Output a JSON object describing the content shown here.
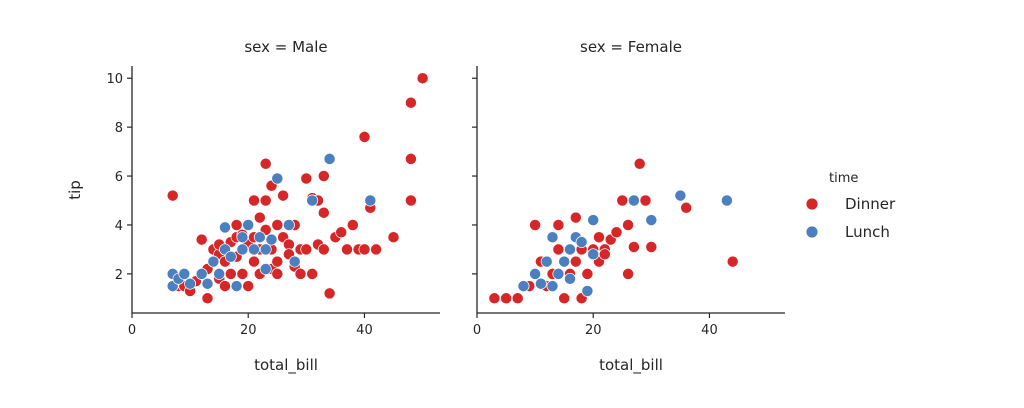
{
  "chart_data": [
    {
      "type": "scatter",
      "title": "sex = Male",
      "xlabel": "total_bill",
      "ylabel": "tip",
      "xlim": [
        0,
        53
      ],
      "ylim": [
        0.4,
        10.5
      ],
      "xticks": [
        0,
        20,
        40
      ],
      "yticks": [
        2,
        4,
        6,
        8,
        10
      ],
      "grid": false,
      "series": [
        {
          "name": "Dinner",
          "color": "#d62728",
          "points": [
            [
              7,
              5.2
            ],
            [
              8,
              1.5
            ],
            [
              9,
              1.5
            ],
            [
              10,
              1.3
            ],
            [
              11,
              1.7
            ],
            [
              12,
              3.4
            ],
            [
              12,
              2.0
            ],
            [
              13,
              1.0
            ],
            [
              13,
              2.2
            ],
            [
              14,
              2.5
            ],
            [
              14,
              3.0
            ],
            [
              15,
              1.8
            ],
            [
              15,
              2.8
            ],
            [
              15,
              3.2
            ],
            [
              16,
              3.0
            ],
            [
              16,
              2.5
            ],
            [
              16,
              1.5
            ],
            [
              17,
              3.3
            ],
            [
              17,
              2.0
            ],
            [
              18,
              3.5
            ],
            [
              18,
              4.0
            ],
            [
              18,
              2.7
            ],
            [
              19,
              3.0
            ],
            [
              19,
              3.6
            ],
            [
              19,
              2.0
            ],
            [
              20,
              3.2
            ],
            [
              20,
              4.0
            ],
            [
              20,
              1.5
            ],
            [
              21,
              3.5
            ],
            [
              21,
              2.5
            ],
            [
              21,
              5.0
            ],
            [
              22,
              3.0
            ],
            [
              22,
              4.3
            ],
            [
              22,
              2.0
            ],
            [
              23,
              3.8
            ],
            [
              23,
              5.0
            ],
            [
              23,
              6.5
            ],
            [
              24,
              5.6
            ],
            [
              24,
              3.0
            ],
            [
              24,
              2.2
            ],
            [
              25,
              2.5
            ],
            [
              25,
              4.0
            ],
            [
              25,
              2.0
            ],
            [
              26,
              3.5
            ],
            [
              26,
              5.2
            ],
            [
              27,
              3.2
            ],
            [
              27,
              2.8
            ],
            [
              28,
              4.0
            ],
            [
              28,
              2.3
            ],
            [
              29,
              3.0
            ],
            [
              29,
              2.0
            ],
            [
              30,
              5.9
            ],
            [
              30,
              3.0
            ],
            [
              31,
              5.1
            ],
            [
              31,
              2.0
            ],
            [
              32,
              5.0
            ],
            [
              32,
              3.2
            ],
            [
              33,
              6.0
            ],
            [
              33,
              4.5
            ],
            [
              33,
              3.0
            ],
            [
              34,
              1.2
            ],
            [
              35,
              3.5
            ],
            [
              36,
              3.7
            ],
            [
              37,
              3.0
            ],
            [
              38,
              4.0
            ],
            [
              39,
              3.0
            ],
            [
              40,
              7.6
            ],
            [
              40,
              3.0
            ],
            [
              41,
              4.7
            ],
            [
              42,
              3.0
            ],
            [
              45,
              3.5
            ],
            [
              48,
              5.0
            ],
            [
              48,
              9.0
            ],
            [
              48,
              6.7
            ],
            [
              50,
              10.0
            ]
          ]
        },
        {
          "name": "Lunch",
          "color": "#4c7fbf",
          "points": [
            [
              7,
              1.5
            ],
            [
              7,
              2.0
            ],
            [
              8,
              1.8
            ],
            [
              9,
              2.0
            ],
            [
              10,
              1.6
            ],
            [
              12,
              2.0
            ],
            [
              13,
              1.6
            ],
            [
              14,
              2.5
            ],
            [
              15,
              2.0
            ],
            [
              16,
              3.0
            ],
            [
              16,
              3.9
            ],
            [
              17,
              2.7
            ],
            [
              18,
              1.5
            ],
            [
              19,
              3.0
            ],
            [
              19,
              3.5
            ],
            [
              20,
              4.0
            ],
            [
              21,
              3.0
            ],
            [
              22,
              3.5
            ],
            [
              23,
              3.0
            ],
            [
              23,
              2.2
            ],
            [
              24,
              3.4
            ],
            [
              25,
              5.9
            ],
            [
              27,
              4.0
            ],
            [
              28,
              2.5
            ],
            [
              31,
              5.0
            ],
            [
              34,
              6.7
            ],
            [
              41,
              5.0
            ]
          ]
        }
      ]
    },
    {
      "type": "scatter",
      "title": "sex = Female",
      "xlabel": "total_bill",
      "ylabel": "",
      "xlim": [
        0,
        53
      ],
      "ylim": [
        0.4,
        10.5
      ],
      "xticks": [
        0,
        20,
        40
      ],
      "yticks": [
        2,
        4,
        6,
        8,
        10
      ],
      "grid": false,
      "series": [
        {
          "name": "Dinner",
          "color": "#d62728",
          "points": [
            [
              3,
              1.0
            ],
            [
              5,
              1.0
            ],
            [
              7,
              1.0
            ],
            [
              9,
              1.5
            ],
            [
              10,
              4.0
            ],
            [
              11,
              2.5
            ],
            [
              12,
              1.5
            ],
            [
              13,
              2.0
            ],
            [
              14,
              3.0
            ],
            [
              14,
              4.0
            ],
            [
              15,
              2.5
            ],
            [
              15,
              1.0
            ],
            [
              16,
              3.0
            ],
            [
              16,
              2.0
            ],
            [
              17,
              4.3
            ],
            [
              17,
              2.5
            ],
            [
              18,
              3.0
            ],
            [
              18,
              1.0
            ],
            [
              19,
              2.0
            ],
            [
              20,
              3.0
            ],
            [
              21,
              2.5
            ],
            [
              21,
              3.5
            ],
            [
              22,
              3.0
            ],
            [
              22,
              2.8
            ],
            [
              23,
              3.4
            ],
            [
              24,
              3.7
            ],
            [
              25,
              5.0
            ],
            [
              26,
              4.0
            ],
            [
              26,
              2.0
            ],
            [
              27,
              3.1
            ],
            [
              28,
              6.5
            ],
            [
              29,
              5.0
            ],
            [
              30,
              3.1
            ],
            [
              36,
              4.7
            ],
            [
              44,
              2.5
            ]
          ]
        },
        {
          "name": "Lunch",
          "color": "#4c7fbf",
          "points": [
            [
              8,
              1.5
            ],
            [
              10,
              2.0
            ],
            [
              11,
              1.6
            ],
            [
              12,
              2.5
            ],
            [
              13,
              1.5
            ],
            [
              13,
              3.5
            ],
            [
              14,
              2.0
            ],
            [
              15,
              2.5
            ],
            [
              16,
              3.0
            ],
            [
              16,
              1.8
            ],
            [
              17,
              3.5
            ],
            [
              18,
              3.3
            ],
            [
              19,
              1.3
            ],
            [
              20,
              4.2
            ],
            [
              20,
              2.8
            ],
            [
              27,
              5.0
            ],
            [
              30,
              4.2
            ],
            [
              35,
              5.2
            ],
            [
              43,
              5.0
            ]
          ]
        }
      ]
    }
  ],
  "legend": {
    "title": "time",
    "placement": "right",
    "entries": [
      {
        "label": "Dinner",
        "color": "#d62728"
      },
      {
        "label": "Lunch",
        "color": "#4c7fbf"
      }
    ]
  }
}
